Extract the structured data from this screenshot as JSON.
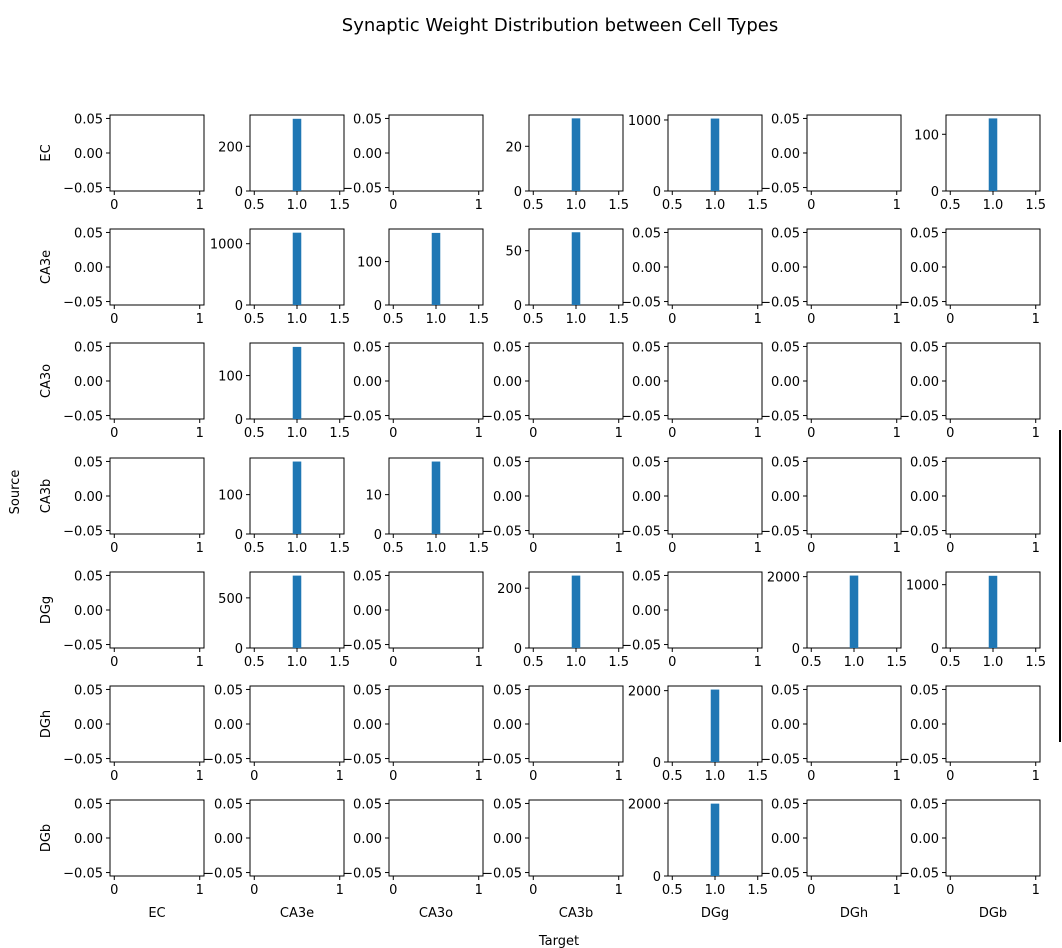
{
  "chart_data": {
    "type": "bar",
    "title": "Synaptic Weight Distribution between Cell Types",
    "xlabel": "Target",
    "ylabel": "Source",
    "row_labels": [
      "EC",
      "CA3e",
      "CA3o",
      "CA3b",
      "DGg",
      "DGh",
      "DGb"
    ],
    "col_labels": [
      "EC",
      "CA3e",
      "CA3o",
      "CA3b",
      "DGg",
      "DGh",
      "DGb"
    ],
    "empty_panel": {
      "xlim": [
        -0.05,
        1.05
      ],
      "xticks": [
        "0",
        "1"
      ],
      "ylim": [
        -0.055,
        0.055
      ],
      "yticks": [
        "-0.05",
        "0.00",
        "0.05"
      ]
    },
    "histogram_panel": {
      "xlim": [
        0.45,
        1.55
      ],
      "xticks": [
        "0.5",
        "1.0",
        "1.5"
      ],
      "bar_center": 1.0,
      "bar_width": 0.1
    },
    "panels": [
      {
        "row": 0,
        "col": 1,
        "count": 323,
        "ymax": 340,
        "yticks": [
          0,
          200
        ]
      },
      {
        "row": 0,
        "col": 3,
        "count": 32.5,
        "ymax": 34,
        "yticks": [
          0,
          20
        ]
      },
      {
        "row": 0,
        "col": 4,
        "count": 1020,
        "ymax": 1070,
        "yticks": [
          0,
          1000
        ]
      },
      {
        "row": 0,
        "col": 6,
        "count": 128,
        "ymax": 134,
        "yticks": [
          0,
          100
        ]
      },
      {
        "row": 1,
        "col": 1,
        "count": 1180,
        "ymax": 1240,
        "yticks": [
          0,
          1000
        ]
      },
      {
        "row": 1,
        "col": 2,
        "count": 166,
        "ymax": 175,
        "yticks": [
          0,
          100
        ]
      },
      {
        "row": 1,
        "col": 3,
        "count": 67,
        "ymax": 70,
        "yticks": [
          0,
          50
        ]
      },
      {
        "row": 2,
        "col": 1,
        "count": 166,
        "ymax": 175,
        "yticks": [
          0,
          100
        ]
      },
      {
        "row": 3,
        "col": 1,
        "count": 184,
        "ymax": 193,
        "yticks": [
          0,
          100
        ]
      },
      {
        "row": 3,
        "col": 2,
        "count": 18.4,
        "ymax": 19.3,
        "yticks": [
          0,
          10
        ]
      },
      {
        "row": 4,
        "col": 1,
        "count": 722,
        "ymax": 758,
        "yticks": [
          0,
          500
        ]
      },
      {
        "row": 4,
        "col": 3,
        "count": 242,
        "ymax": 254,
        "yticks": [
          0,
          200
        ]
      },
      {
        "row": 4,
        "col": 5,
        "count": 2030,
        "ymax": 2130,
        "yticks": [
          0,
          2000
        ]
      },
      {
        "row": 4,
        "col": 6,
        "count": 1140,
        "ymax": 1200,
        "yticks": [
          0,
          1000
        ]
      },
      {
        "row": 5,
        "col": 4,
        "count": 2030,
        "ymax": 2130,
        "yticks": [
          0,
          2000
        ]
      },
      {
        "row": 6,
        "col": 4,
        "count": 1990,
        "ymax": 2090,
        "yticks": [
          0,
          2000
        ]
      }
    ],
    "bar_color": "#1f77b4",
    "grid": false,
    "legend": "none"
  }
}
